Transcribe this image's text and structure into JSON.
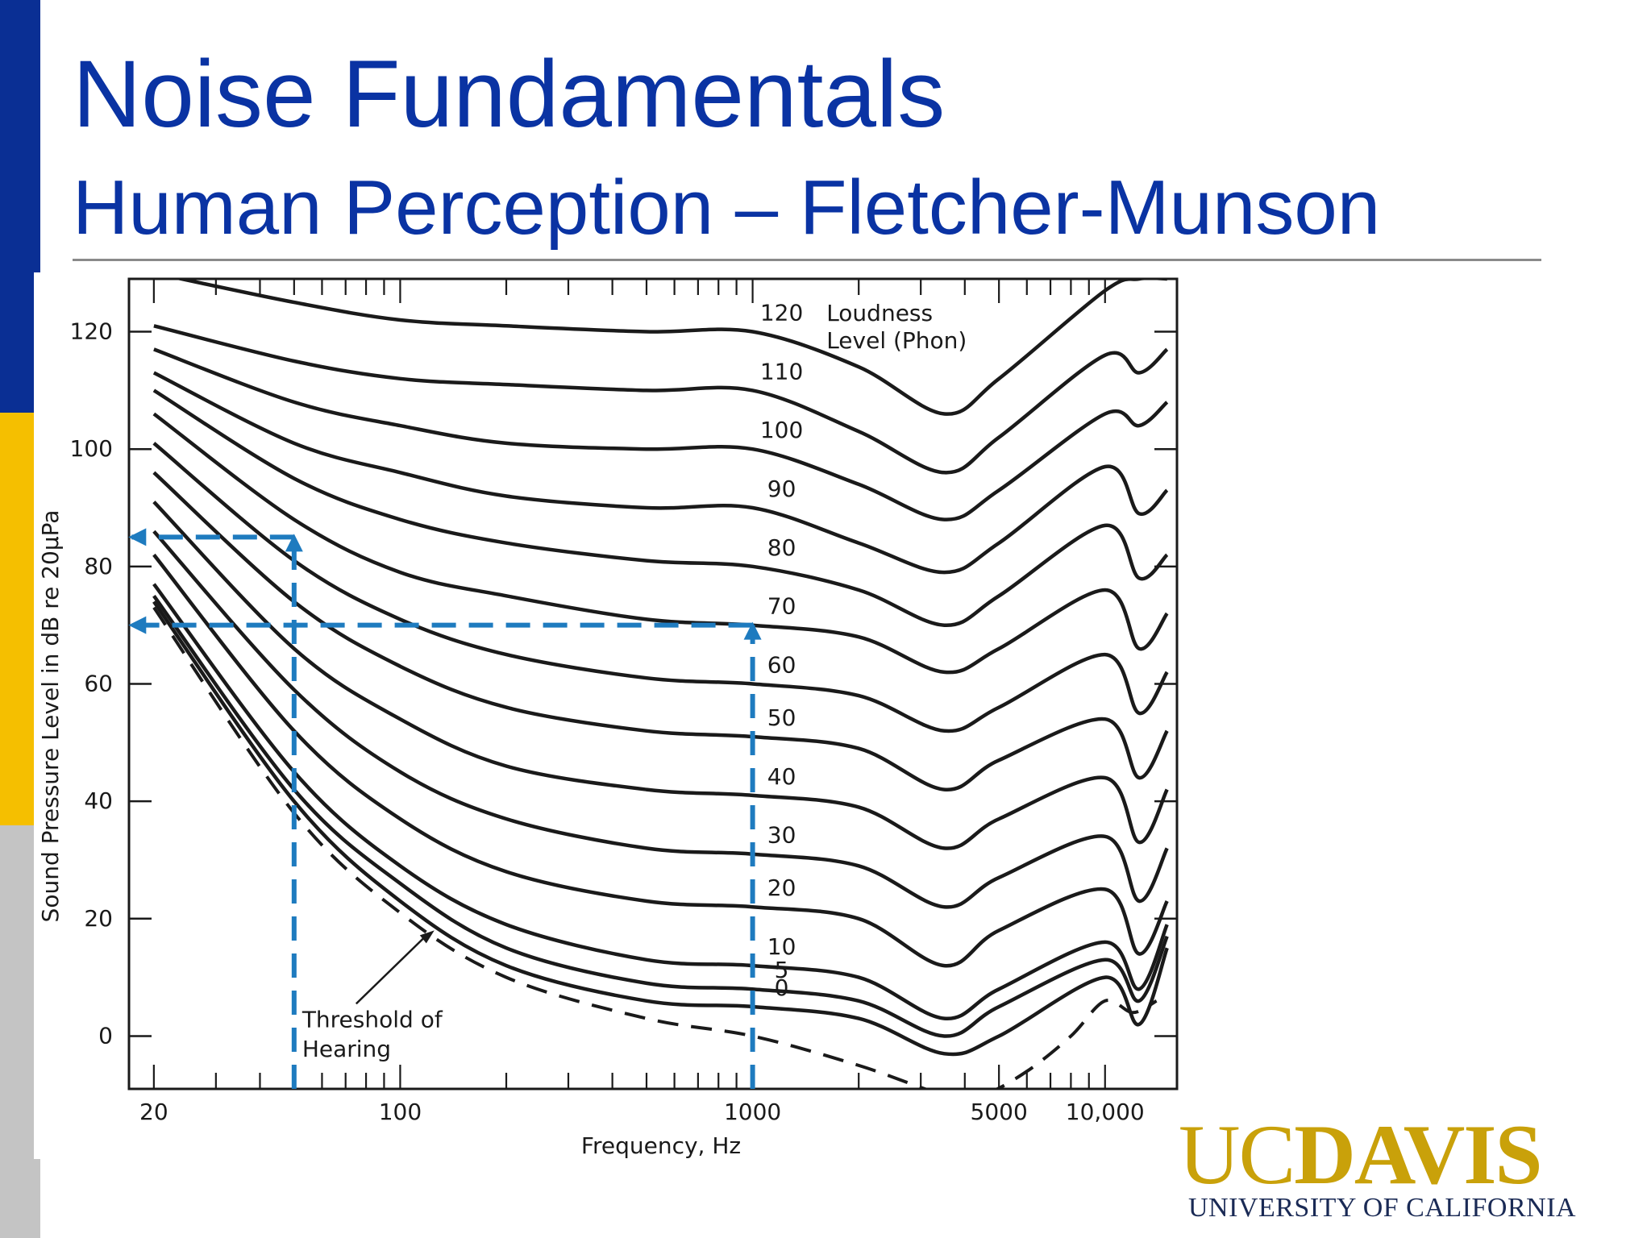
{
  "slide": {
    "title": "Noise Fundamentals",
    "subtitle": "Human Perception – Fletcher-Munson"
  },
  "colors": {
    "title": "#0a33a3",
    "sidebar_blue": "#0a2f94",
    "sidebar_gold": "#f5bf00",
    "sidebar_gray": "#c4c4c4",
    "curve": "#1a1a1a",
    "guide": "#1e7bbf",
    "logo_gold": "#c9a10a",
    "logo_navy": "#1a2a55"
  },
  "logo": {
    "uc": "UC",
    "davis": "DAVIS",
    "subtitle": "UNIVERSITY OF CALIFORNIA"
  },
  "chart_data": {
    "type": "line",
    "xlabel": "Frequency, Hz",
    "ylabel": "Sound Pressure Level in dB re 20μPa",
    "xscale": "log",
    "xlim": [
      17,
      16000
    ],
    "ylim": [
      -9,
      129
    ],
    "xticks": [
      20,
      100,
      1000,
      5000,
      10000
    ],
    "xtick_labels": [
      "20",
      "100",
      "1000",
      "5000",
      "10,000"
    ],
    "yticks": [
      0,
      20,
      40,
      60,
      80,
      100,
      120
    ],
    "ytick_labels": [
      "0",
      "20",
      "40",
      "60",
      "80",
      "100",
      "120"
    ],
    "legend_title": [
      "Loudness",
      "Level (Phon)"
    ],
    "x": [
      20,
      50,
      100,
      200,
      500,
      1000,
      2000,
      3500,
      5000,
      10000,
      12500,
      15000
    ],
    "series": [
      {
        "label": "120",
        "values": [
          130,
          125,
          122,
          121,
          120,
          120,
          114,
          106,
          112,
          127,
          129,
          129
        ]
      },
      {
        "label": "110",
        "values": [
          121,
          115,
          112,
          111,
          110,
          110,
          103,
          96,
          102,
          116,
          113,
          117
        ]
      },
      {
        "label": "100",
        "values": [
          117,
          108,
          104,
          101,
          100,
          100,
          94,
          88,
          93,
          106,
          104,
          108
        ]
      },
      {
        "label": "90",
        "values": [
          113,
          101,
          96,
          92,
          90,
          90,
          84,
          79,
          84,
          97,
          89,
          93
        ]
      },
      {
        "label": "80",
        "values": [
          110,
          95,
          88,
          84,
          81,
          80,
          76,
          70,
          75,
          87,
          78,
          82
        ]
      },
      {
        "label": "70",
        "values": [
          106,
          88,
          79,
          75,
          71,
          70,
          68,
          62,
          66,
          76,
          66,
          72
        ]
      },
      {
        "label": "60",
        "values": [
          101,
          81,
          71,
          65,
          61,
          60,
          58,
          52,
          56,
          65,
          55,
          62
        ]
      },
      {
        "label": "50",
        "values": [
          96,
          74,
          63,
          56,
          52,
          51,
          49,
          42,
          47,
          54,
          44,
          52
        ]
      },
      {
        "label": "40",
        "values": [
          91,
          66,
          54,
          46,
          42,
          41,
          39,
          32,
          37,
          44,
          33,
          42
        ]
      },
      {
        "label": "30",
        "values": [
          86,
          59,
          45,
          37,
          32,
          31,
          29,
          22,
          27,
          34,
          23,
          32
        ]
      },
      {
        "label": "20",
        "values": [
          82,
          52,
          37,
          28,
          23,
          22,
          20,
          12,
          18,
          25,
          14,
          23
        ]
      },
      {
        "label": "10",
        "values": [
          77,
          45,
          29,
          19,
          13,
          12,
          10,
          3,
          8,
          16,
          8,
          19
        ]
      },
      {
        "label": "5",
        "values": [
          75,
          42,
          26,
          15,
          9,
          8,
          6,
          0,
          5,
          13,
          6,
          17
        ]
      },
      {
        "label": "0",
        "values": [
          74,
          40,
          23,
          12,
          6,
          5,
          3,
          -3,
          0,
          10,
          2,
          15
        ]
      }
    ],
    "threshold_of_hearing": {
      "label": [
        "Threshold of",
        "Hearing"
      ],
      "x": [
        20,
        50,
        100,
        200,
        500,
        1000,
        2000,
        3500,
        4500,
        6000,
        8000,
        10000,
        12000,
        14000
      ],
      "values": [
        73,
        38,
        21,
        10,
        3,
        0,
        -5,
        -10,
        -10,
        -6,
        0,
        6,
        4,
        6
      ]
    },
    "annotations": {
      "guides": [
        {
          "from": [
            1000,
            -9
          ],
          "to": [
            1000,
            70
          ],
          "arrow": "up"
        },
        {
          "from": [
            1000,
            70
          ],
          "to": [
            17.3,
            70
          ],
          "arrow": "left"
        },
        {
          "from": [
            50,
            -9
          ],
          "to": [
            50,
            85
          ],
          "arrow": "up"
        },
        {
          "from": [
            50,
            85
          ],
          "to": [
            17.3,
            85
          ],
          "arrow": "left"
        }
      ]
    },
    "grid": false
  }
}
